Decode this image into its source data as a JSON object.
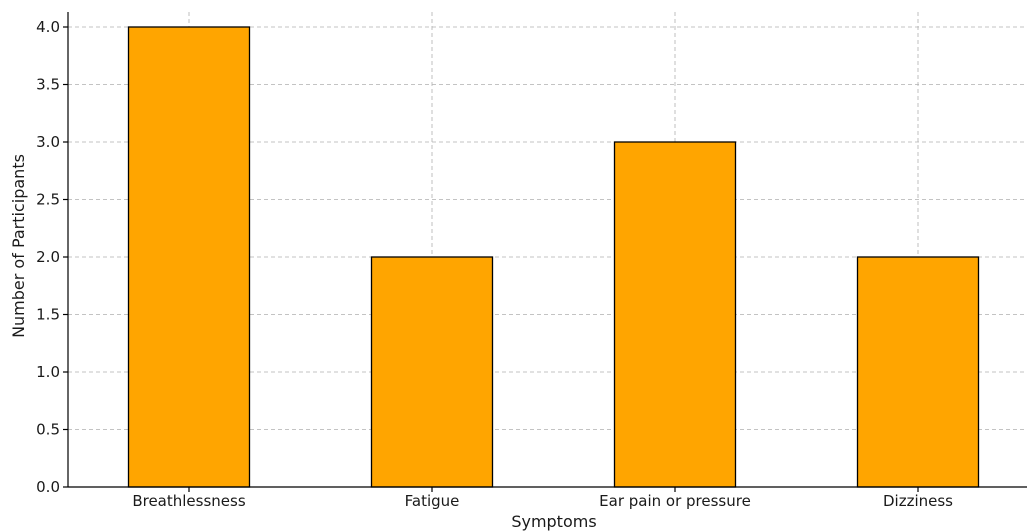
{
  "chart_data": {
    "type": "bar",
    "title": "",
    "xlabel": "Symptoms",
    "ylabel": "Number of Participants",
    "categories": [
      "Breathlessness",
      "Fatigue",
      "Ear pain or pressure",
      "Dizziness"
    ],
    "values": [
      4,
      2,
      3,
      2
    ],
    "ylim": [
      0,
      4.0
    ],
    "yticks": [
      "0.0",
      "0.5",
      "1.0",
      "1.5",
      "2.0",
      "2.5",
      "3.0",
      "3.5",
      "4.0"
    ],
    "grid": true,
    "colors": {
      "bar": "#FFA500",
      "bar_edge": "#000000",
      "grid": "#b0b0b0"
    }
  }
}
